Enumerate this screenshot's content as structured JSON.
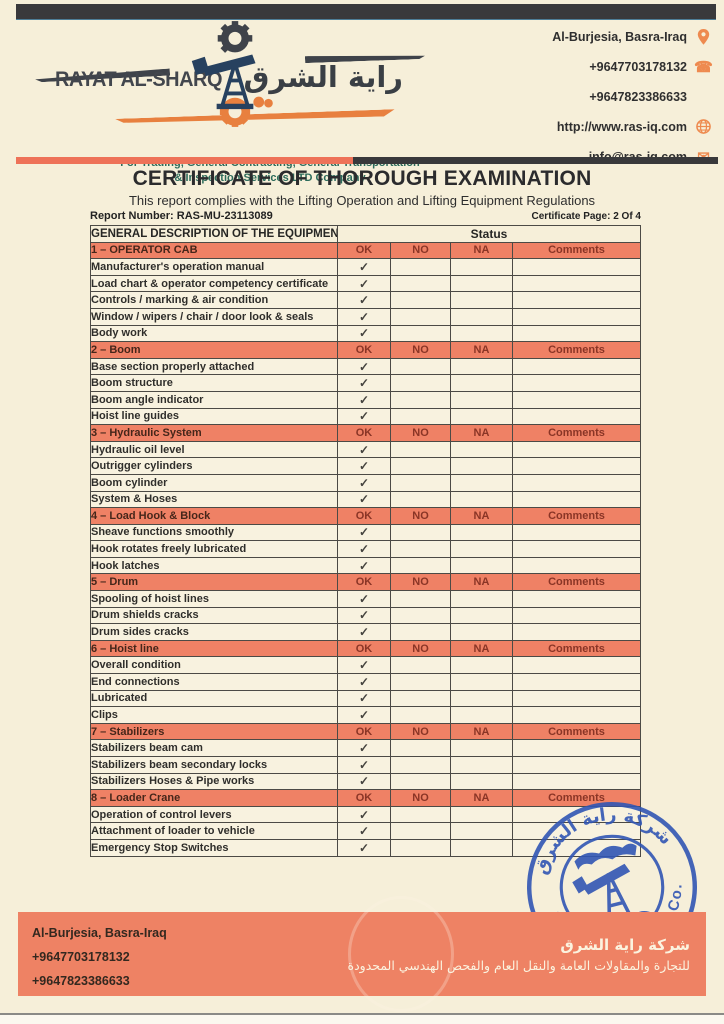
{
  "page": {
    "title": "CERTIFICATE OF THOROUGH EXAMINATION",
    "subtitle": "This report complies with the Lifting Operation and Lifting Equipment Regulations",
    "report_number": "Report Number: RAS-MU-23113089",
    "certificate_page": "Certificate Page: 2 Of 4"
  },
  "header": {
    "brand_en": "RAYAT AL-SHARQ",
    "brand_ar": "راية الشرق",
    "tagline_line1": "For Trading, General Contracting, General Transportation",
    "tagline_line2": "& Inspection Services LTD Company",
    "contacts": {
      "address": "Al-Burjesia, Basra-Iraq",
      "phone1": "+9647703178132",
      "phone2": "+9647823386633",
      "website": "http://www.ras-iq.com",
      "email": "info@ras-iq.com",
      "phone_glyph": "☎",
      "email_glyph": "✉"
    }
  },
  "table": {
    "col_equipment": "GENERAL DESCRIPTION OF THE EQUIPMENT",
    "col_status": "Status",
    "status_cols": [
      "OK",
      "NO",
      "NA",
      "Comments"
    ],
    "check_glyph": "✓",
    "sections": [
      {
        "title": "1 – OPERATOR CAB",
        "items": [
          {
            "label": "Manufacturer's operation manual",
            "ok": true
          },
          {
            "label": "Load chart & operator competency certificate",
            "ok": true
          },
          {
            "label": "Controls / marking & air condition",
            "ok": true
          },
          {
            "label": "Window / wipers / chair / door look & seals",
            "ok": true
          },
          {
            "label": "Body work",
            "ok": true
          }
        ]
      },
      {
        "title": "2 – Boom",
        "items": [
          {
            "label": "Base section properly attached",
            "ok": true
          },
          {
            "label": "Boom structure",
            "ok": true
          },
          {
            "label": "Boom angle indicator",
            "ok": true
          },
          {
            "label": "Hoist line guides",
            "ok": true
          }
        ]
      },
      {
        "title": "3 – Hydraulic System",
        "items": [
          {
            "label": "Hydraulic oil level",
            "ok": true
          },
          {
            "label": "Outrigger cylinders",
            "ok": true
          },
          {
            "label": "Boom cylinder",
            "ok": true
          },
          {
            "label": "System & Hoses",
            "ok": true
          }
        ]
      },
      {
        "title": "4 – Load Hook & Block",
        "items": [
          {
            "label": "Sheave functions smoothly",
            "ok": true
          },
          {
            "label": "Hook rotates freely lubricated",
            "ok": true
          },
          {
            "label": "Hook latches",
            "ok": true
          }
        ]
      },
      {
        "title": "5 – Drum",
        "items": [
          {
            "label": "Spooling of hoist lines",
            "ok": true
          },
          {
            "label": "Drum shields cracks",
            "ok": true
          },
          {
            "label": "Drum sides cracks",
            "ok": true
          }
        ]
      },
      {
        "title": "6 – Hoist line",
        "items": [
          {
            "label": "Overall condition",
            "ok": true
          },
          {
            "label": "End connections",
            "ok": true
          },
          {
            "label": "Lubricated",
            "ok": true
          },
          {
            "label": "Clips",
            "ok": true
          }
        ]
      },
      {
        "title": "7 – Stabilizers",
        "items": [
          {
            "label": "Stabilizers beam cam",
            "ok": true
          },
          {
            "label": "Stabilizers beam secondary locks",
            "ok": true
          },
          {
            "label": "Stabilizers Hoses & Pipe works",
            "ok": true
          }
        ]
      },
      {
        "title": "8 – Loader Crane",
        "items": [
          {
            "label": "Operation of control levers",
            "ok": true
          },
          {
            "label": "Attachment of loader to vehicle",
            "ok": true
          },
          {
            "label": "Emergency Stop Switches",
            "ok": true
          }
        ]
      }
    ]
  },
  "stamp": {
    "top_ar": "شركة راية الشرق",
    "bottom_en": "RAYAT AL-SHARQ Co."
  },
  "footer": {
    "address": "Al-Burjesia, Basra-Iraq",
    "phone1": "+9647703178132",
    "phone2": "+9647823386633",
    "company_ar_line1": "شركة راية الشرق",
    "company_ar_line2": "للتجارة والمقاولات العامة والنقل العام والفحص الهندسي المحدودة"
  },
  "colors": {
    "accent_orange": "#ee8264",
    "section_salmon": "#ef8165",
    "dark_bar": "#39393b",
    "stamp_blue": "#3156b4",
    "page_cream": "#f6efd9",
    "tagline_teal": "#2c6b5b"
  }
}
